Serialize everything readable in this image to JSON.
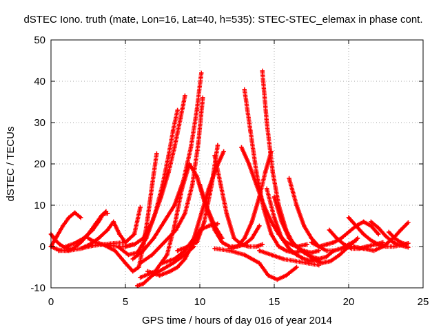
{
  "chart_data": {
    "type": "scatter",
    "title": "dSTEC Iono. truth (mate, Lon=16, Lat=40, h=535): STEC-STEC_elemax in phase cont.",
    "xlabel": "GPS time / hours of day 016 of year 2014",
    "ylabel": "dSTEC  / TECUs",
    "xlim": [
      0,
      25
    ],
    "ylim": [
      -10,
      50
    ],
    "xticks": [
      "0",
      "5",
      "10",
      "15",
      "20",
      "25"
    ],
    "yticks": [
      "-10",
      "0",
      "10",
      "20",
      "30",
      "40",
      "50"
    ],
    "grid": true,
    "marker": "plus",
    "series_color": "#ff0000",
    "series": [
      {
        "x": [
          0.0,
          0.3,
          0.6,
          0.9,
          1.2
        ],
        "y": [
          3.0,
          1.5,
          0.5,
          -0.2,
          -0.5
        ]
      },
      {
        "x": [
          0.0,
          0.4,
          0.8,
          1.2,
          1.6,
          2.0
        ],
        "y": [
          0.0,
          2.5,
          5.0,
          7.0,
          8.2,
          7.0
        ]
      },
      {
        "x": [
          0.0,
          0.5,
          1.0,
          1.5,
          2.0,
          2.5,
          3.0,
          3.4,
          3.7
        ],
        "y": [
          0.0,
          -0.8,
          -1.0,
          -0.5,
          1.0,
          3.0,
          5.5,
          7.5,
          8.5
        ]
      },
      {
        "x": [
          1.0,
          1.6,
          2.2,
          2.8,
          3.2,
          3.5,
          3.8
        ],
        "y": [
          0.0,
          0.8,
          2.0,
          4.0,
          6.0,
          7.8,
          8.0
        ]
      },
      {
        "x": [
          2.5,
          3.0,
          3.5,
          4.0,
          4.5,
          5.0,
          5.5
        ],
        "y": [
          2.0,
          1.0,
          0.5,
          0.3,
          0.0,
          0.0,
          0.5
        ]
      },
      {
        "x": [
          2.0,
          2.6,
          3.2,
          3.8,
          4.2,
          4.6,
          5.0
        ],
        "y": [
          -0.5,
          0.5,
          2.0,
          4.0,
          6.0,
          3.0,
          1.0
        ]
      },
      {
        "x": [
          0.5,
          1.2,
          2.0,
          2.8,
          3.5,
          4.2,
          5.0,
          5.6,
          6.0
        ],
        "y": [
          -1.0,
          -1.0,
          -0.5,
          0.2,
          0.5,
          0.8,
          1.0,
          3.0,
          9.5
        ]
      },
      {
        "x": [
          3.5,
          4.3,
          5.0,
          5.5,
          5.9,
          6.2,
          6.5,
          6.8,
          7.1
        ],
        "y": [
          0.5,
          -1.0,
          -4.0,
          -6.0,
          -5.0,
          0.0,
          7.0,
          15.0,
          22.5
        ]
      },
      {
        "x": [
          4.5,
          5.2,
          5.8,
          6.4,
          7.0,
          7.5,
          7.9,
          8.2,
          8.5
        ],
        "y": [
          0.0,
          -2.0,
          -1.5,
          2.0,
          8.0,
          15.0,
          22.0,
          28.0,
          33.0
        ]
      },
      {
        "x": [
          5.0,
          5.6,
          6.2,
          6.8,
          7.4,
          7.9,
          8.3,
          8.7,
          9.0
        ],
        "y": [
          0.0,
          0.5,
          2.0,
          6.0,
          12.0,
          18.0,
          24.0,
          31.0,
          36.5
        ]
      },
      {
        "x": [
          5.5,
          6.2,
          6.9,
          7.6,
          8.3,
          8.9,
          9.4,
          9.8,
          10.1
        ],
        "y": [
          -3.0,
          -1.0,
          2.0,
          6.0,
          10.0,
          16.0,
          24.0,
          33.0,
          42.0
        ]
      },
      {
        "x": [
          6.0,
          6.8,
          7.6,
          8.4,
          9.0,
          9.5,
          9.9,
          10.2
        ],
        "y": [
          -4.0,
          -2.0,
          1.0,
          4.0,
          8.0,
          15.0,
          25.0,
          36.0
        ]
      },
      {
        "x": [
          6.5,
          7.3,
          8.0,
          8.5,
          9.0,
          9.5,
          10.0,
          10.6,
          11.2
        ],
        "y": [
          -6.0,
          -7.0,
          -6.0,
          -5.0,
          -3.0,
          0.5,
          4.0,
          5.0,
          5.5
        ]
      },
      {
        "x": [
          5.8,
          6.2,
          6.8,
          7.5,
          8.2,
          9.0,
          9.6
        ],
        "y": [
          -9.5,
          -9.0,
          -7.0,
          -5.5,
          -4.0,
          -2.0,
          0.0
        ]
      },
      {
        "x": [
          6.0,
          7.0,
          7.8,
          8.3,
          8.8,
          9.3,
          9.8,
          10.3,
          11.0,
          11.5
        ],
        "y": [
          -7.5,
          -6.0,
          -2.0,
          5.0,
          14.0,
          20.0,
          17.0,
          11.0,
          5.0,
          2.0
        ]
      },
      {
        "x": [
          7.5,
          8.3,
          9.0,
          9.6,
          10.1,
          10.6,
          11.1,
          11.6
        ],
        "y": [
          -4.0,
          -3.0,
          -1.0,
          2.0,
          8.0,
          14.0,
          19.0,
          23.0
        ]
      },
      {
        "x": [
          8.5,
          9.2,
          9.8,
          10.3,
          10.8,
          11.2
        ],
        "y": [
          -1.0,
          0.0,
          1.0,
          6.0,
          15.0,
          24.5
        ]
      },
      {
        "x": [
          11.0,
          11.4,
          11.8,
          12.3,
          12.8,
          13.3,
          13.8,
          14.2
        ],
        "y": [
          22.0,
          15.0,
          8.0,
          2.0,
          0.5,
          0.0,
          0.0,
          0.5
        ]
      },
      {
        "x": [
          10.0,
          10.5,
          11.0,
          11.5,
          12.0,
          12.5,
          13.0,
          13.5,
          14.0
        ],
        "y": [
          15.0,
          9.0,
          4.0,
          1.0,
          0.0,
          0.0,
          0.5,
          2.0,
          5.0
        ]
      },
      {
        "x": [
          13.0,
          13.4,
          13.8,
          14.3,
          14.8,
          15.3,
          15.8,
          16.3,
          16.9
        ],
        "y": [
          38.0,
          28.0,
          18.0,
          9.0,
          3.0,
          0.0,
          -1.0,
          -1.5,
          -1.0
        ]
      },
      {
        "x": [
          14.2,
          14.5,
          14.9,
          15.3,
          15.8,
          16.3,
          16.9,
          17.5,
          18.0
        ],
        "y": [
          42.5,
          30.0,
          18.0,
          10.0,
          4.0,
          0.5,
          -1.0,
          -1.5,
          -1.0
        ]
      },
      {
        "x": [
          12.8,
          13.3,
          13.8,
          14.3,
          14.8,
          15.3,
          15.8,
          16.5,
          17.2
        ],
        "y": [
          24.0,
          20.0,
          15.0,
          10.0,
          6.0,
          3.0,
          1.0,
          0.0,
          0.5
        ]
      },
      {
        "x": [
          12.0,
          12.5,
          13.0,
          13.5,
          14.0,
          14.4,
          14.8
        ],
        "y": [
          -0.5,
          0.0,
          2.0,
          6.0,
          12.0,
          18.0,
          23.0
        ]
      },
      {
        "x": [
          14.5,
          15.0,
          15.5,
          16.0,
          16.5,
          17.0,
          17.5,
          18.0
        ],
        "y": [
          14.0,
          7.0,
          2.0,
          -0.5,
          -2.0,
          -3.0,
          -3.5,
          -3.0
        ]
      },
      {
        "x": [
          15.0,
          15.5,
          16.0,
          16.5,
          17.0,
          17.5,
          18.0,
          18.5,
          19.0
        ],
        "y": [
          12.0,
          6.0,
          2.0,
          0.0,
          -1.5,
          -2.5,
          -3.0,
          -2.5,
          -1.0
        ]
      },
      {
        "x": [
          16.0,
          16.5,
          17.0,
          17.5,
          18.0,
          18.5,
          19.0,
          19.5,
          20.0,
          20.5
        ],
        "y": [
          16.5,
          10.0,
          5.0,
          2.0,
          0.0,
          -1.0,
          -1.0,
          -0.5,
          0.5,
          1.5
        ]
      },
      {
        "x": [
          11.0,
          12.0,
          13.0,
          14.0,
          14.6,
          15.2,
          15.8,
          16.5
        ],
        "y": [
          -0.5,
          -1.0,
          -2.0,
          -4.0,
          -7.0,
          -8.0,
          -7.0,
          -5.0
        ]
      },
      {
        "x": [
          14.0,
          14.8,
          15.6,
          16.4,
          17.2,
          18.0
        ],
        "y": [
          -1.0,
          -2.0,
          -3.0,
          -3.5,
          -4.0,
          -4.5
        ]
      },
      {
        "x": [
          17.0,
          17.6,
          18.2,
          18.8,
          19.4,
          20.0,
          20.6
        ],
        "y": [
          -1.0,
          -3.0,
          -4.0,
          -3.5,
          -2.0,
          0.0,
          2.0
        ]
      },
      {
        "x": [
          17.5,
          18.0,
          18.5,
          19.0,
          19.5,
          20.0,
          20.5,
          21.0,
          21.5,
          22.0
        ],
        "y": [
          1.0,
          0.0,
          0.5,
          1.0,
          2.0,
          3.5,
          5.0,
          6.0,
          5.0,
          3.0
        ]
      },
      {
        "x": [
          18.7,
          19.2,
          19.7,
          20.2,
          20.7,
          21.2,
          21.8,
          22.3
        ],
        "y": [
          4.0,
          2.0,
          0.5,
          -0.5,
          -0.5,
          0.0,
          0.5,
          1.0
        ]
      },
      {
        "x": [
          20.0,
          20.5,
          21.0,
          21.5,
          22.0,
          22.5,
          23.0,
          23.5,
          24.0
        ],
        "y": [
          7.0,
          5.0,
          3.0,
          1.5,
          0.5,
          0.0,
          0.0,
          0.3,
          0.8
        ]
      },
      {
        "x": [
          19.5,
          20.3,
          21.0,
          21.7,
          22.3,
          23.0,
          23.5,
          24.0
        ],
        "y": [
          -0.5,
          0.0,
          -0.5,
          -1.0,
          0.0,
          2.0,
          4.0,
          5.8
        ]
      },
      {
        "x": [
          21.5,
          22.0,
          22.5,
          23.0,
          23.5,
          24.0
        ],
        "y": [
          6.0,
          4.5,
          2.5,
          1.0,
          0.3,
          -0.2
        ]
      },
      {
        "x": [
          22.7,
          23.1,
          23.5,
          23.9
        ],
        "y": [
          3.5,
          2.0,
          1.0,
          0.5
        ]
      }
    ]
  }
}
